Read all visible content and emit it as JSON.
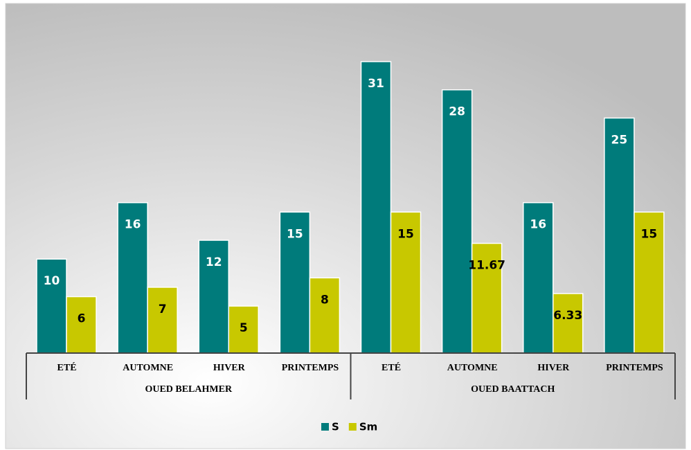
{
  "chart_data": {
    "type": "bar",
    "groups": [
      {
        "name": "OUED BELAHMER",
        "categories": [
          "ETÉ",
          "AUTOMNE",
          "HIVER",
          "PRINTEMPS"
        ]
      },
      {
        "name": "OUED BAATTACH",
        "categories": [
          "ETÉ",
          "AUTOMNE",
          "HIVER",
          "PRINTEMPS"
        ]
      }
    ],
    "series": [
      {
        "name": "S",
        "color": "#007b7b",
        "values": [
          10,
          16,
          12,
          15,
          31,
          28,
          16,
          25
        ]
      },
      {
        "name": "Sm",
        "color": "#c8c800",
        "values": [
          6,
          7,
          5,
          8,
          15,
          11.67,
          6.33,
          15
        ]
      }
    ],
    "legend": "bottom"
  }
}
